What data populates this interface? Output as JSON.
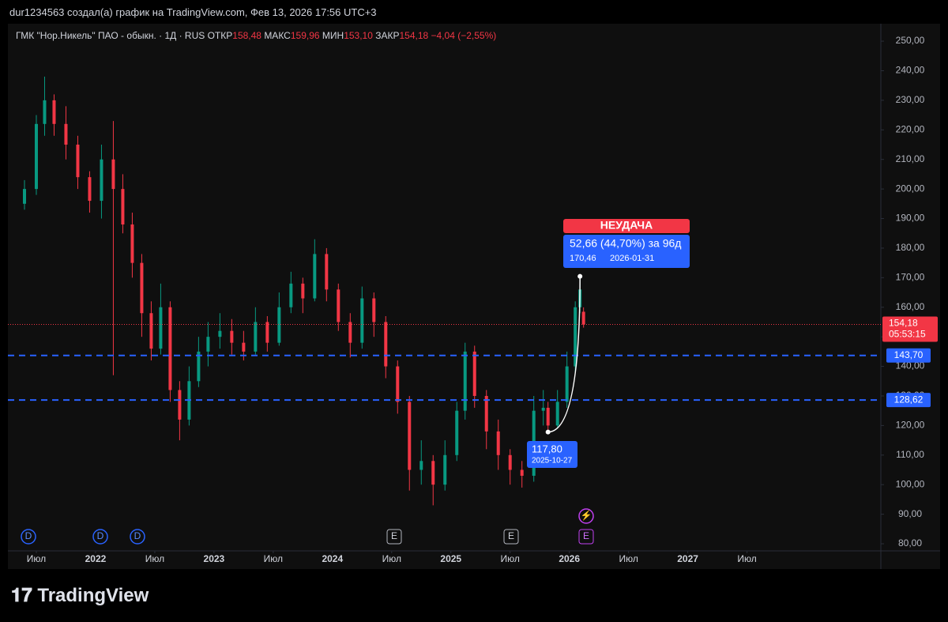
{
  "header": {
    "caption": "dur1234563 создал(а) график на TradingView.com, Фев 13, 2026 17:56 UTC+3",
    "symbol": "ГМК \"Нор.Никель\" ПАО - обыкн. · 1Д · RUS",
    "open_label": "ОТКР",
    "open": "158,48",
    "high_label": "МАКС",
    "high": "159,96",
    "low_label": "МИН",
    "low": "153,10",
    "close_label": "ЗАКР",
    "close": "154,18",
    "change": "−4,04 (−2,55%)"
  },
  "chart_data": {
    "type": "candlestick",
    "x": [
      2021.4,
      2021.5,
      2021.57,
      2021.65,
      2021.75,
      2021.85,
      2021.95,
      2022.05,
      2022.15,
      2022.23,
      2022.31,
      2022.39,
      2022.47,
      2022.55,
      2022.63,
      2022.71,
      2022.79,
      2022.87,
      2022.95,
      2023.05,
      2023.15,
      2023.25,
      2023.35,
      2023.45,
      2023.55,
      2023.65,
      2023.75,
      2023.85,
      2023.95,
      2024.05,
      2024.15,
      2024.25,
      2024.35,
      2024.45,
      2024.55,
      2024.65,
      2024.75,
      2024.85,
      2024.95,
      2025.05,
      2025.12,
      2025.2,
      2025.3,
      2025.4,
      2025.5,
      2025.6,
      2025.7,
      2025.78,
      2025.82,
      2025.9,
      2025.98,
      2026.05,
      2026.09,
      2026.12
    ],
    "open": [
      195,
      200,
      222,
      230,
      222,
      215,
      204,
      196,
      210,
      200,
      188,
      175,
      158,
      146,
      160,
      132,
      122,
      135,
      145,
      150,
      152,
      148,
      145,
      155,
      148,
      160,
      168,
      163,
      178,
      166,
      155,
      148,
      163,
      155,
      140,
      128,
      105,
      108,
      100,
      110,
      125,
      145,
      130,
      118,
      110,
      105,
      103,
      125,
      126,
      120,
      128,
      140,
      160,
      158.48
    ],
    "high": [
      203,
      225,
      238,
      232,
      228,
      218,
      206,
      215,
      223,
      205,
      192,
      178,
      162,
      168,
      162,
      135,
      140,
      150,
      155,
      158,
      156,
      152,
      160,
      157,
      165,
      172,
      170,
      183,
      180,
      168,
      158,
      167,
      165,
      157,
      142,
      130,
      115,
      110,
      115,
      128,
      148,
      147,
      132,
      122,
      112,
      108,
      130,
      132,
      128,
      132,
      145,
      162,
      170.46,
      159.96
    ],
    "low": [
      193,
      198,
      218,
      218,
      210,
      200,
      192,
      190,
      137,
      185,
      170,
      150,
      142,
      144,
      128,
      115,
      120,
      133,
      140,
      146,
      144,
      142,
      144,
      145,
      147,
      158,
      158,
      162,
      162,
      152,
      143,
      146,
      150,
      136,
      124,
      98,
      100,
      93,
      98,
      108,
      122,
      126,
      112,
      105,
      100,
      99,
      101,
      120,
      117.8,
      119,
      126,
      138,
      158,
      153.1
    ],
    "close": [
      200,
      222,
      230,
      222,
      215,
      204,
      196,
      210,
      200,
      188,
      175,
      158,
      146,
      160,
      132,
      122,
      135,
      145,
      150,
      152,
      148,
      145,
      155,
      148,
      160,
      168,
      163,
      178,
      166,
      155,
      148,
      163,
      155,
      140,
      128,
      105,
      108,
      100,
      110,
      125,
      145,
      130,
      118,
      110,
      105,
      103,
      125,
      126,
      120,
      128,
      140,
      160,
      166,
      154.18
    ],
    "up_color": "#089981",
    "down_color": "#f23645",
    "xlim": [
      2021.26,
      2028.63
    ],
    "xticks": [
      {
        "value": 2021.5,
        "label": "Июл"
      },
      {
        "value": 2022,
        "label": "2022"
      },
      {
        "value": 2022.5,
        "label": "Июл"
      },
      {
        "value": 2023,
        "label": "2023"
      },
      {
        "value": 2023.5,
        "label": "Июл"
      },
      {
        "value": 2024,
        "label": "2024"
      },
      {
        "value": 2024.5,
        "label": "Июл"
      },
      {
        "value": 2025,
        "label": "2025"
      },
      {
        "value": 2025.5,
        "label": "Июл"
      },
      {
        "value": 2026,
        "label": "2026"
      },
      {
        "value": 2026.5,
        "label": "Июл"
      },
      {
        "value": 2027,
        "label": "2027"
      },
      {
        "value": 2027.5,
        "label": "Июл"
      }
    ],
    "ylim": [
      77.6,
      255.9
    ],
    "yticks": [
      {
        "value": 80,
        "label": "80,00"
      },
      {
        "value": 90,
        "label": "90,00"
      },
      {
        "value": 100,
        "label": "100,00"
      },
      {
        "value": 110,
        "label": "110,00"
      },
      {
        "value": 120,
        "label": "120,00"
      },
      {
        "value": 130,
        "label": "130,00"
      },
      {
        "value": 140,
        "label": "140,00"
      },
      {
        "value": 150,
        "label": "150,00"
      },
      {
        "value": 160,
        "label": "160,00"
      },
      {
        "value": 170,
        "label": "170,00"
      },
      {
        "value": 180,
        "label": "180,00"
      },
      {
        "value": 190,
        "label": "190,00"
      },
      {
        "value": 200,
        "label": "200,00"
      },
      {
        "value": 210,
        "label": "210,00"
      },
      {
        "value": 220,
        "label": "220,00"
      },
      {
        "value": 230,
        "label": "230,00"
      },
      {
        "value": 240,
        "label": "240,00"
      },
      {
        "value": 250,
        "label": "250,00"
      }
    ],
    "levels": [
      {
        "value": 143.7,
        "label": "143,70"
      },
      {
        "value": 128.62,
        "label": "128,62"
      }
    ],
    "level_color": "#2962ff",
    "last_price": {
      "value": 154.18,
      "label": "154,18",
      "countdown": "05:53:15"
    },
    "measure": {
      "status": "НЕУДАЧА",
      "summary": "52,66 (44,70%) за 96д",
      "from": {
        "x": 2025.82,
        "value": 117.8,
        "label": "117,80",
        "date": "2025-10-27"
      },
      "to": {
        "x": 2026.09,
        "value": 170.46,
        "label": "170,46",
        "date": "2026-01-31"
      }
    }
  },
  "footer": {
    "brand": "TradingView"
  }
}
